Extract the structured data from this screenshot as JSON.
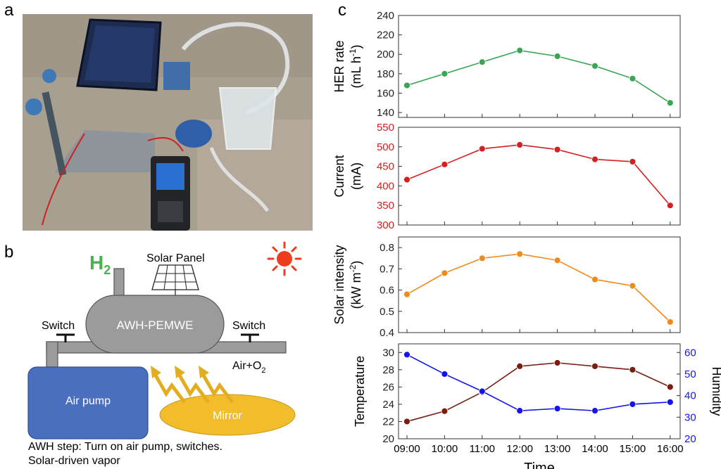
{
  "panels": {
    "a": {
      "label": "a"
    },
    "b": {
      "label": "b",
      "h2_label": "H",
      "h2_sub": "2",
      "solar_panel_label": "Solar Panel",
      "device_label": "AWH-PEMWE",
      "switch_left_label": "Switch",
      "switch_right_label": "Switch",
      "air_o2_label": "Air+O",
      "air_o2_sub": "2",
      "air_pump_label": "Air pump",
      "mirror_label": "Mirror",
      "caption_line1": "AWH step: Turn on air pump, switches.",
      "caption_line2": "Solar-driven vapor"
    },
    "c": {
      "label": "c"
    }
  },
  "colors": {
    "her": "#3aa655",
    "current": "#d42020",
    "solar": "#f08a1c",
    "temperature": "#7a1c10",
    "humidity": "#1414ee",
    "pump_fill": "#4a6fbf",
    "mirror_fill": "#f1bd2a",
    "device_fill": "#9b9b9b",
    "sun": "#ef3b1e"
  },
  "chart_data": [
    {
      "type": "line",
      "id": "her",
      "x": [
        "09:00",
        "10:00",
        "11:00",
        "12:00",
        "13:00",
        "14:00",
        "15:00",
        "16:00"
      ],
      "ylabel_line1": "HER rate",
      "ylabel_line2": "(mL h",
      "ylabel_sup": "-1",
      "ylabel_end": ")",
      "ylim": [
        135,
        240
      ],
      "yticks": [
        140,
        160,
        180,
        200,
        220,
        240
      ],
      "series": [
        {
          "values": [
            168,
            180,
            192,
            204,
            198,
            188,
            175,
            150
          ]
        }
      ]
    },
    {
      "type": "line",
      "id": "current",
      "x": [
        "09:00",
        "10:00",
        "11:00",
        "12:00",
        "13:00",
        "14:00",
        "15:00",
        "16:00"
      ],
      "ylabel_line1": "Current",
      "ylabel_line2": "(mA)",
      "ylim": [
        300,
        550
      ],
      "yticks": [
        300,
        350,
        400,
        450,
        500,
        550
      ],
      "series": [
        {
          "values": [
            416,
            455,
            495,
            505,
            493,
            468,
            462,
            350
          ]
        }
      ]
    },
    {
      "type": "line",
      "id": "solar",
      "x": [
        "09:00",
        "10:00",
        "11:00",
        "12:00",
        "13:00",
        "14:00",
        "15:00",
        "16:00"
      ],
      "ylabel_line1": "Solar intensity",
      "ylabel_line2": "(kW m",
      "ylabel_sup": "-2",
      "ylabel_end": ")",
      "ylim": [
        0.4,
        0.85
      ],
      "yticks": [
        "0.4",
        "0.5",
        "0.6",
        "0.7",
        "0.8"
      ],
      "series": [
        {
          "values": [
            0.58,
            0.68,
            0.75,
            0.77,
            0.74,
            0.65,
            0.62,
            0.45
          ]
        }
      ]
    },
    {
      "type": "line",
      "id": "temphum",
      "x": [
        "09:00",
        "10:00",
        "11:00",
        "12:00",
        "13:00",
        "14:00",
        "15:00",
        "16:00"
      ],
      "xlabel": "Time",
      "ylabel": "Temperature",
      "ylabel_right": "Humidity",
      "ylim": [
        20,
        31
      ],
      "ylim_right": [
        20,
        64
      ],
      "yticks": [
        20,
        22,
        24,
        26,
        28,
        30
      ],
      "yticks_right": [
        20,
        30,
        40,
        50,
        60
      ],
      "series": [
        {
          "axis": "left",
          "values": [
            22,
            23.2,
            25.4,
            28.4,
            28.8,
            28.4,
            28,
            26
          ]
        },
        {
          "axis": "right",
          "values": [
            59,
            50,
            42,
            33,
            34,
            33,
            36,
            37
          ]
        }
      ]
    }
  ]
}
